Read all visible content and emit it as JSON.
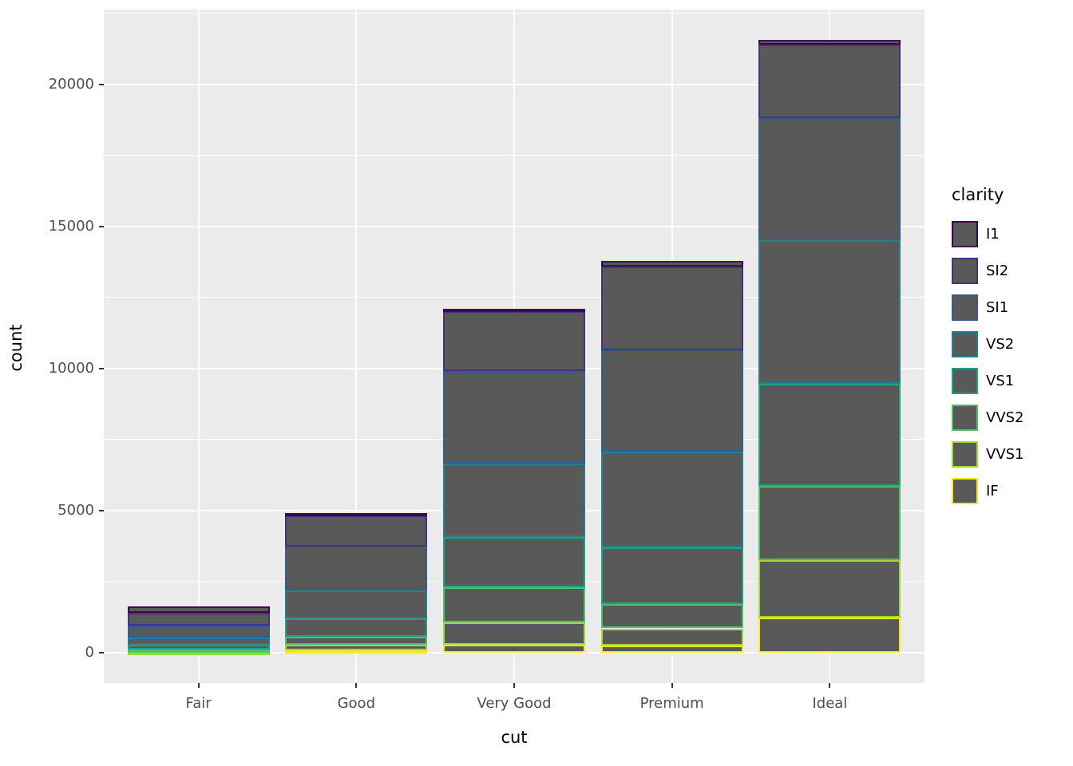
{
  "chart_data": {
    "type": "bar",
    "stacked": true,
    "xlabel": "cut",
    "ylabel": "count",
    "legend_title": "clarity",
    "legend_position": "right",
    "categories": [
      "Fair",
      "Good",
      "Very Good",
      "Premium",
      "Ideal"
    ],
    "y_ticks": [
      0,
      5000,
      10000,
      15000,
      20000
    ],
    "y_minor": [
      2500,
      7500,
      12500,
      17500,
      22500
    ],
    "ylim": [
      -1078,
      22629
    ],
    "grid": true,
    "panel_bg": "#EBEBEB",
    "grid_color": "#FFFFFF",
    "bar_fill": "#595959",
    "totals": [
      1610,
      4906,
      12082,
      13791,
      21551
    ],
    "series": [
      {
        "name": "I1",
        "color": "#440154",
        "values": [
          210,
          96,
          84,
          205,
          146
        ]
      },
      {
        "name": "SI2",
        "color": "#46337E",
        "values": [
          466,
          1081,
          2100,
          2949,
          2598
        ]
      },
      {
        "name": "SI1",
        "color": "#365C8D",
        "values": [
          408,
          1560,
          3240,
          3575,
          4282
        ]
      },
      {
        "name": "VS2",
        "color": "#277F8E",
        "values": [
          261,
          978,
          2591,
          3357,
          5071
        ]
      },
      {
        "name": "VS1",
        "color": "#1FA187",
        "values": [
          170,
          648,
          1775,
          1989,
          3589
        ]
      },
      {
        "name": "VVS2",
        "color": "#4AC16D",
        "values": [
          69,
          286,
          1235,
          870,
          2606
        ]
      },
      {
        "name": "VVS1",
        "color": "#A0DA39",
        "values": [
          17,
          186,
          789,
          616,
          2047
        ]
      },
      {
        "name": "IF",
        "color": "#FDE725",
        "values": [
          9,
          71,
          268,
          230,
          1212
        ]
      }
    ],
    "stack_order_bottom_to_top": [
      "IF",
      "VVS1",
      "VVS2",
      "VS1",
      "VS2",
      "SI1",
      "SI2",
      "I1"
    ]
  }
}
